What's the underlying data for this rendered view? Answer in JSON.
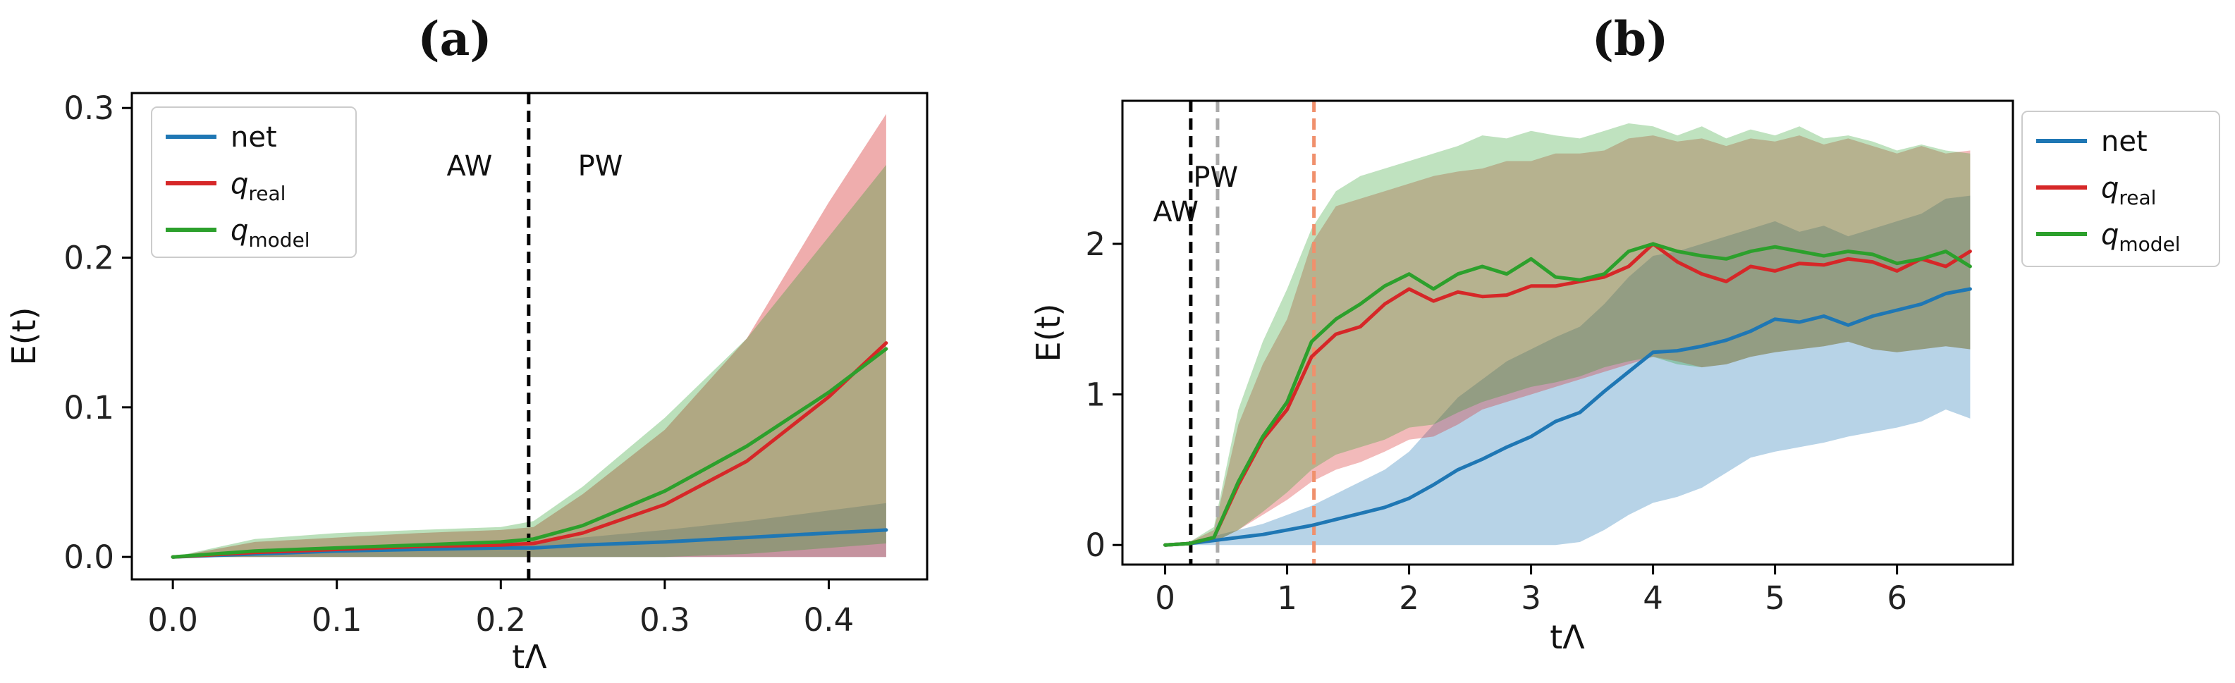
{
  "chart_data": [
    {
      "panel": "(a)",
      "type": "line",
      "xlabel": "tΛ",
      "ylabel": "E(t)",
      "xlim": [
        -0.025,
        0.46
      ],
      "ylim": [
        -0.015,
        0.31
      ],
      "xticks": [
        0.0,
        0.1,
        0.2,
        0.3,
        0.4
      ],
      "xtick_labels": [
        "0.0",
        "0.1",
        "0.2",
        "0.3",
        "0.4"
      ],
      "yticks": [
        0.0,
        0.1,
        0.2,
        0.3
      ],
      "ytick_labels": [
        "0.0",
        "0.1",
        "0.2",
        "0.3"
      ],
      "grid": false,
      "legend_position": "upper-left",
      "vlines": [
        {
          "x": 0.217,
          "color": "#000000",
          "style": "dashed"
        }
      ],
      "annotations": [
        {
          "text": "AW",
          "x": 0.167,
          "y": 0.255
        },
        {
          "text": "PW",
          "x": 0.247,
          "y": 0.255
        }
      ],
      "x": [
        0.0,
        0.05,
        0.1,
        0.15,
        0.2,
        0.22,
        0.25,
        0.3,
        0.35,
        0.4,
        0.435
      ],
      "series": [
        {
          "name": "net",
          "color": "#1f77b4",
          "values": [
            0.0,
            0.002,
            0.004,
            0.005,
            0.006,
            0.006,
            0.008,
            0.01,
            0.013,
            0.016,
            0.018
          ],
          "lower": [
            0.0,
            0.0,
            0.0,
            0.0,
            0.0,
            0.0,
            0.0,
            0.0,
            0.0,
            0.0,
            0.0
          ],
          "upper": [
            0.0,
            0.004,
            0.007,
            0.008,
            0.01,
            0.01,
            0.013,
            0.018,
            0.024,
            0.031,
            0.036
          ]
        },
        {
          "name": "q",
          "subscript": "real",
          "color": "#d62728",
          "values": [
            0.0,
            0.003,
            0.005,
            0.007,
            0.008,
            0.009,
            0.016,
            0.035,
            0.064,
            0.107,
            0.143
          ],
          "lower": [
            0.0,
            0.0,
            0.0,
            0.0,
            0.0,
            0.0,
            0.0,
            0.0,
            0.0,
            0.0,
            0.0
          ],
          "upper": [
            0.0,
            0.01,
            0.013,
            0.016,
            0.018,
            0.02,
            0.042,
            0.085,
            0.146,
            0.237,
            0.296
          ]
        },
        {
          "name": "q",
          "subscript": "model",
          "color": "#2ca02c",
          "values": [
            0.0,
            0.004,
            0.006,
            0.008,
            0.01,
            0.012,
            0.021,
            0.044,
            0.074,
            0.11,
            0.139
          ],
          "lower": [
            0.0,
            0.0,
            0.0,
            0.0,
            0.0,
            0.0,
            0.0,
            0.0,
            0.002,
            0.006,
            0.009
          ],
          "upper": [
            0.0,
            0.012,
            0.016,
            0.018,
            0.02,
            0.024,
            0.047,
            0.093,
            0.146,
            0.214,
            0.262
          ]
        }
      ]
    },
    {
      "panel": "(b)",
      "type": "line",
      "xlabel": "tΛ",
      "ylabel": "E(t)",
      "xlim": [
        -0.35,
        6.95
      ],
      "ylim": [
        -0.13,
        2.95
      ],
      "xticks": [
        0,
        1,
        2,
        3,
        4,
        5,
        6
      ],
      "xtick_labels": [
        "0",
        "1",
        "2",
        "3",
        "4",
        "5",
        "6"
      ],
      "yticks": [
        0,
        1,
        2
      ],
      "ytick_labels": [
        "0",
        "1",
        "2"
      ],
      "grid": false,
      "legend_position": "outside-right",
      "vlines": [
        {
          "x": 0.21,
          "color": "#000000",
          "style": "dashed"
        },
        {
          "x": 0.43,
          "color": "#aaaaaa",
          "style": "dashed"
        },
        {
          "x": 1.22,
          "color": "#f0906c",
          "style": "dashed"
        }
      ],
      "annotations": [
        {
          "text": "AW",
          "x": -0.1,
          "y": 2.15
        },
        {
          "text": "PW",
          "x": 0.23,
          "y": 2.38
        }
      ],
      "x": [
        0.0,
        0.2,
        0.4,
        0.6,
        0.8,
        1.0,
        1.2,
        1.4,
        1.6,
        1.8,
        2.0,
        2.2,
        2.4,
        2.6,
        2.8,
        3.0,
        3.2,
        3.4,
        3.6,
        3.8,
        4.0,
        4.2,
        4.4,
        4.6,
        4.8,
        5.0,
        5.2,
        5.4,
        5.6,
        5.8,
        6.0,
        6.2,
        6.4,
        6.6
      ],
      "series": [
        {
          "name": "net",
          "color": "#1f77b4",
          "values": [
            0.0,
            0.01,
            0.03,
            0.05,
            0.07,
            0.1,
            0.13,
            0.17,
            0.21,
            0.25,
            0.31,
            0.4,
            0.5,
            0.57,
            0.65,
            0.72,
            0.82,
            0.88,
            1.02,
            1.15,
            1.28,
            1.29,
            1.32,
            1.36,
            1.42,
            1.5,
            1.48,
            1.52,
            1.46,
            1.52,
            1.56,
            1.6,
            1.67,
            1.7
          ],
          "lower": [
            0.0,
            0.0,
            0.0,
            0.0,
            0.0,
            0.0,
            0.0,
            0.0,
            0.0,
            0.0,
            0.0,
            0.0,
            0.0,
            0.0,
            0.0,
            0.0,
            0.0,
            0.02,
            0.1,
            0.2,
            0.28,
            0.32,
            0.38,
            0.48,
            0.58,
            0.62,
            0.65,
            0.68,
            0.72,
            0.75,
            0.78,
            0.82,
            0.9,
            0.84
          ],
          "upper": [
            0.0,
            0.02,
            0.06,
            0.1,
            0.14,
            0.2,
            0.26,
            0.34,
            0.42,
            0.5,
            0.62,
            0.8,
            0.98,
            1.1,
            1.22,
            1.3,
            1.38,
            1.45,
            1.6,
            1.78,
            1.92,
            1.95,
            2.0,
            2.05,
            2.1,
            2.15,
            2.08,
            2.12,
            2.05,
            2.1,
            2.15,
            2.2,
            2.3,
            2.32
          ]
        },
        {
          "name": "q",
          "subscript": "real",
          "color": "#d62728",
          "values": [
            0.0,
            0.01,
            0.05,
            0.4,
            0.7,
            0.9,
            1.25,
            1.4,
            1.45,
            1.6,
            1.7,
            1.62,
            1.68,
            1.65,
            1.66,
            1.72,
            1.72,
            1.75,
            1.78,
            1.85,
            2.0,
            1.88,
            1.8,
            1.75,
            1.85,
            1.82,
            1.87,
            1.86,
            1.9,
            1.88,
            1.82,
            1.9,
            1.85,
            1.95
          ],
          "lower": [
            0.0,
            0.0,
            0.02,
            0.1,
            0.2,
            0.3,
            0.42,
            0.5,
            0.55,
            0.62,
            0.7,
            0.72,
            0.8,
            0.9,
            0.95,
            1.0,
            1.05,
            1.1,
            1.15,
            1.2,
            1.25,
            1.22,
            1.18,
            1.2,
            1.25,
            1.28,
            1.3,
            1.32,
            1.35,
            1.3,
            1.28,
            1.3,
            1.32,
            1.3
          ],
          "upper": [
            0.0,
            0.02,
            0.1,
            0.8,
            1.2,
            1.5,
            2.0,
            2.25,
            2.3,
            2.35,
            2.4,
            2.45,
            2.48,
            2.5,
            2.55,
            2.55,
            2.6,
            2.6,
            2.62,
            2.7,
            2.72,
            2.68,
            2.7,
            2.65,
            2.7,
            2.68,
            2.72,
            2.66,
            2.7,
            2.65,
            2.6,
            2.65,
            2.6,
            2.62
          ]
        },
        {
          "name": "q",
          "subscript": "model",
          "color": "#2ca02c",
          "values": [
            0.0,
            0.01,
            0.05,
            0.42,
            0.72,
            0.95,
            1.35,
            1.5,
            1.6,
            1.72,
            1.8,
            1.7,
            1.8,
            1.85,
            1.8,
            1.9,
            1.78,
            1.76,
            1.8,
            1.95,
            2.0,
            1.95,
            1.92,
            1.9,
            1.95,
            1.98,
            1.95,
            1.92,
            1.95,
            1.93,
            1.87,
            1.9,
            1.95,
            1.85
          ],
          "lower": [
            0.0,
            0.0,
            0.02,
            0.1,
            0.22,
            0.35,
            0.5,
            0.6,
            0.65,
            0.7,
            0.78,
            0.8,
            0.88,
            0.95,
            1.0,
            1.05,
            1.08,
            1.12,
            1.18,
            1.22,
            1.25,
            1.2,
            1.18,
            1.2,
            1.25,
            1.28,
            1.3,
            1.32,
            1.35,
            1.3,
            1.28,
            1.3,
            1.32,
            1.3
          ],
          "upper": [
            0.0,
            0.02,
            0.12,
            0.9,
            1.35,
            1.7,
            2.1,
            2.35,
            2.45,
            2.5,
            2.55,
            2.6,
            2.65,
            2.72,
            2.7,
            2.75,
            2.72,
            2.7,
            2.75,
            2.8,
            2.78,
            2.72,
            2.78,
            2.7,
            2.76,
            2.72,
            2.78,
            2.7,
            2.72,
            2.68,
            2.62,
            2.66,
            2.62,
            2.6
          ]
        }
      ]
    }
  ]
}
